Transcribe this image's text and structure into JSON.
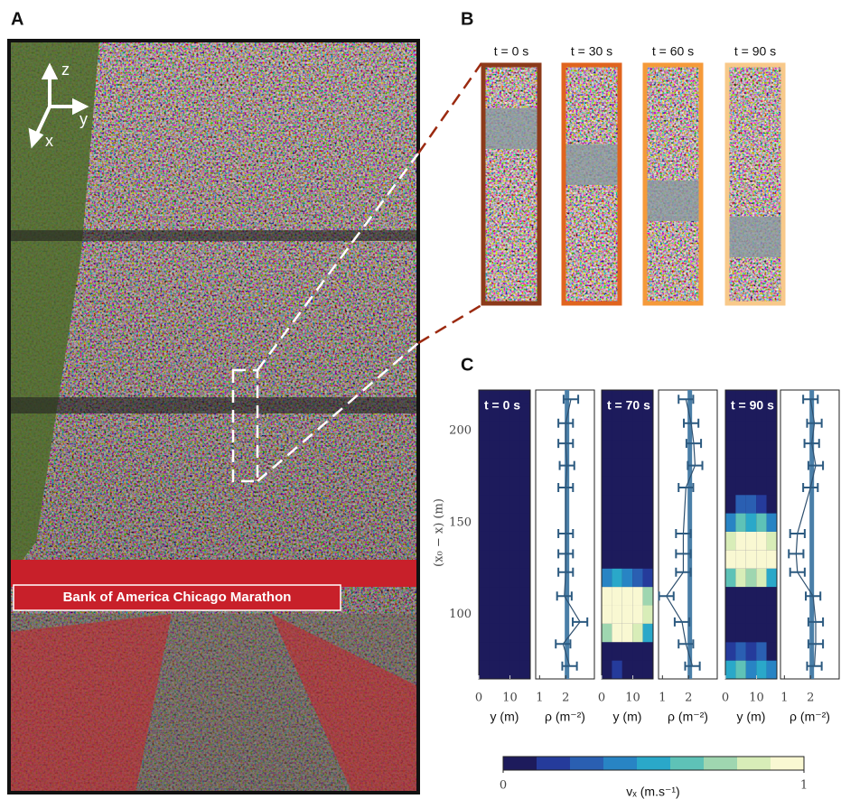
{
  "panel_labels": {
    "a": "A",
    "b": "B",
    "c": "C"
  },
  "panel_a": {
    "axes": {
      "z": "z",
      "y": "y",
      "x": "x"
    },
    "banner": "Bank of America Chicago Marathon"
  },
  "panel_b": {
    "frames": [
      {
        "label": "t = 0 s",
        "color": "#8c3a1a"
      },
      {
        "label": "t = 30 s",
        "color": "#e0641e"
      },
      {
        "label": "t = 60 s",
        "color": "#f59a3a"
      },
      {
        "label": "t = 90 s",
        "color": "#f8c98a"
      }
    ]
  },
  "chart_data": {
    "type": "heatmap-profile",
    "ylabel": "(x₀ − x) (m)",
    "ylim": [
      65,
      222
    ],
    "yticks": [
      100,
      150,
      200
    ],
    "heatmap_xlabel": "y (m)",
    "heatmap_xlim": [
      0,
      16.5
    ],
    "heatmap_xticks": [
      0,
      10
    ],
    "heatmap_xbins": [
      0,
      3.3,
      6.6,
      9.9,
      13.2,
      16.5
    ],
    "heatmap_ybins": [
      65,
      75,
      85,
      95,
      105,
      115,
      125,
      135,
      145,
      155,
      165,
      175,
      185,
      195,
      205,
      215,
      222
    ],
    "profile_xlabel": "ρ (m⁻²)",
    "profile_xlim": [
      0.85,
      3.1
    ],
    "profile_xticks": [
      1,
      2
    ],
    "profile_y": [
      217,
      204,
      193,
      181,
      169,
      144,
      133,
      123,
      110,
      96,
      84,
      72
    ],
    "colorbar": {
      "label": "vₓ (m.s⁻¹)",
      "lim": [
        0,
        1
      ],
      "ticks": [
        0,
        1
      ],
      "colors": [
        "#1d1b5c",
        "#253b9b",
        "#2a5fb2",
        "#2884c4",
        "#2aa8c9",
        "#5ec2b7",
        "#9fd6b0",
        "#d8edb8",
        "#f9f8d2"
      ]
    },
    "panels": [
      {
        "time": "t = 0 s",
        "mean": 2.05,
        "heatmap": [
          [
            0,
            0,
            0,
            0,
            0
          ],
          [
            0,
            0,
            0,
            0,
            0
          ],
          [
            0,
            0,
            0,
            0,
            0
          ],
          [
            0,
            0,
            0,
            0,
            0
          ],
          [
            0,
            0,
            0,
            0,
            0
          ],
          [
            0,
            0,
            0,
            0,
            0
          ],
          [
            0,
            0,
            0,
            0,
            0
          ],
          [
            0,
            0,
            0,
            0,
            0
          ],
          [
            0,
            0,
            0,
            0,
            0
          ],
          [
            0,
            0,
            0,
            0,
            0
          ],
          [
            0,
            0,
            0,
            0,
            0
          ],
          [
            0,
            0,
            0,
            0,
            0
          ],
          [
            0,
            0,
            0,
            0,
            0
          ],
          [
            0,
            0,
            0,
            0,
            0
          ],
          [
            0,
            0,
            0,
            0,
            0
          ],
          [
            0,
            0,
            0,
            0,
            0
          ]
        ],
        "rho": [
          2.2,
          2.0,
          2.0,
          2.05,
          2.0,
          2.0,
          2.0,
          2.0,
          1.95,
          2.55,
          1.9,
          2.15
        ],
        "errors": [
          0.28,
          0.28,
          0.28,
          0.28,
          0.28,
          0.28,
          0.28,
          0.28,
          0.28,
          0.28,
          0.28,
          0.28
        ]
      },
      {
        "time": "t = 70 s",
        "mean": 2.05,
        "heatmap": [
          [
            0.1,
            0.2,
            0,
            0,
            0
          ],
          [
            0,
            0,
            0,
            0,
            0
          ],
          [
            0.7,
            0.9,
            0.9,
            0.8,
            0.5
          ],
          [
            1,
            1,
            1,
            0.9,
            0.8
          ],
          [
            0.9,
            1,
            1,
            0.9,
            0.7
          ],
          [
            0.4,
            0.5,
            0.4,
            0.3,
            0.2
          ],
          [
            0,
            0,
            0,
            0,
            0
          ],
          [
            0,
            0,
            0,
            0,
            0
          ],
          [
            0,
            0,
            0,
            0,
            0
          ],
          [
            0,
            0,
            0,
            0,
            0
          ],
          [
            0,
            0,
            0,
            0,
            0
          ],
          [
            0,
            0,
            0,
            0,
            0
          ],
          [
            0,
            0,
            0,
            0,
            0
          ],
          [
            0,
            0,
            0,
            0,
            0
          ],
          [
            0,
            0,
            0,
            0,
            0
          ],
          [
            0,
            0,
            0,
            0,
            0
          ]
        ],
        "rho": [
          1.9,
          2.1,
          2.2,
          2.25,
          1.9,
          1.8,
          1.8,
          1.8,
          1.15,
          1.75,
          1.9,
          2.15
        ],
        "errors": [
          0.28,
          0.28,
          0.28,
          0.28,
          0.28,
          0.28,
          0.28,
          0.28,
          0.28,
          0.28,
          0.28,
          0.28
        ]
      },
      {
        "time": "t = 90 s",
        "mean": 2.05,
        "heatmap": [
          [
            0.5,
            0.6,
            0.4,
            0.5,
            0.4
          ],
          [
            0.2,
            0.3,
            0.2,
            0.3,
            0.1
          ],
          [
            0,
            0,
            0,
            0,
            0
          ],
          [
            0,
            0,
            0,
            0,
            0
          ],
          [
            0,
            0,
            0,
            0,
            0
          ],
          [
            0.6,
            0.8,
            0.7,
            0.8,
            0.5
          ],
          [
            0.9,
            1,
            1,
            0.9,
            0.9
          ],
          [
            0.8,
            1,
            0.9,
            1,
            0.8
          ],
          [
            0.4,
            0.6,
            0.5,
            0.6,
            0.4
          ],
          [
            0.1,
            0.3,
            0.3,
            0.2,
            0.1
          ],
          [
            0,
            0,
            0,
            0,
            0
          ],
          [
            0,
            0,
            0,
            0,
            0
          ],
          [
            0,
            0,
            0,
            0,
            0
          ],
          [
            0,
            0,
            0,
            0,
            0
          ],
          [
            0,
            0,
            0,
            0,
            0
          ],
          [
            0,
            0,
            0,
            0,
            0
          ]
        ],
        "rho": [
          2.0,
          2.15,
          2.05,
          2.2,
          2.0,
          1.5,
          1.45,
          1.5,
          2.1,
          2.2,
          2.2,
          2.15
        ],
        "errors": [
          0.28,
          0.28,
          0.28,
          0.28,
          0.28,
          0.28,
          0.28,
          0.28,
          0.28,
          0.28,
          0.28,
          0.28
        ]
      }
    ]
  }
}
